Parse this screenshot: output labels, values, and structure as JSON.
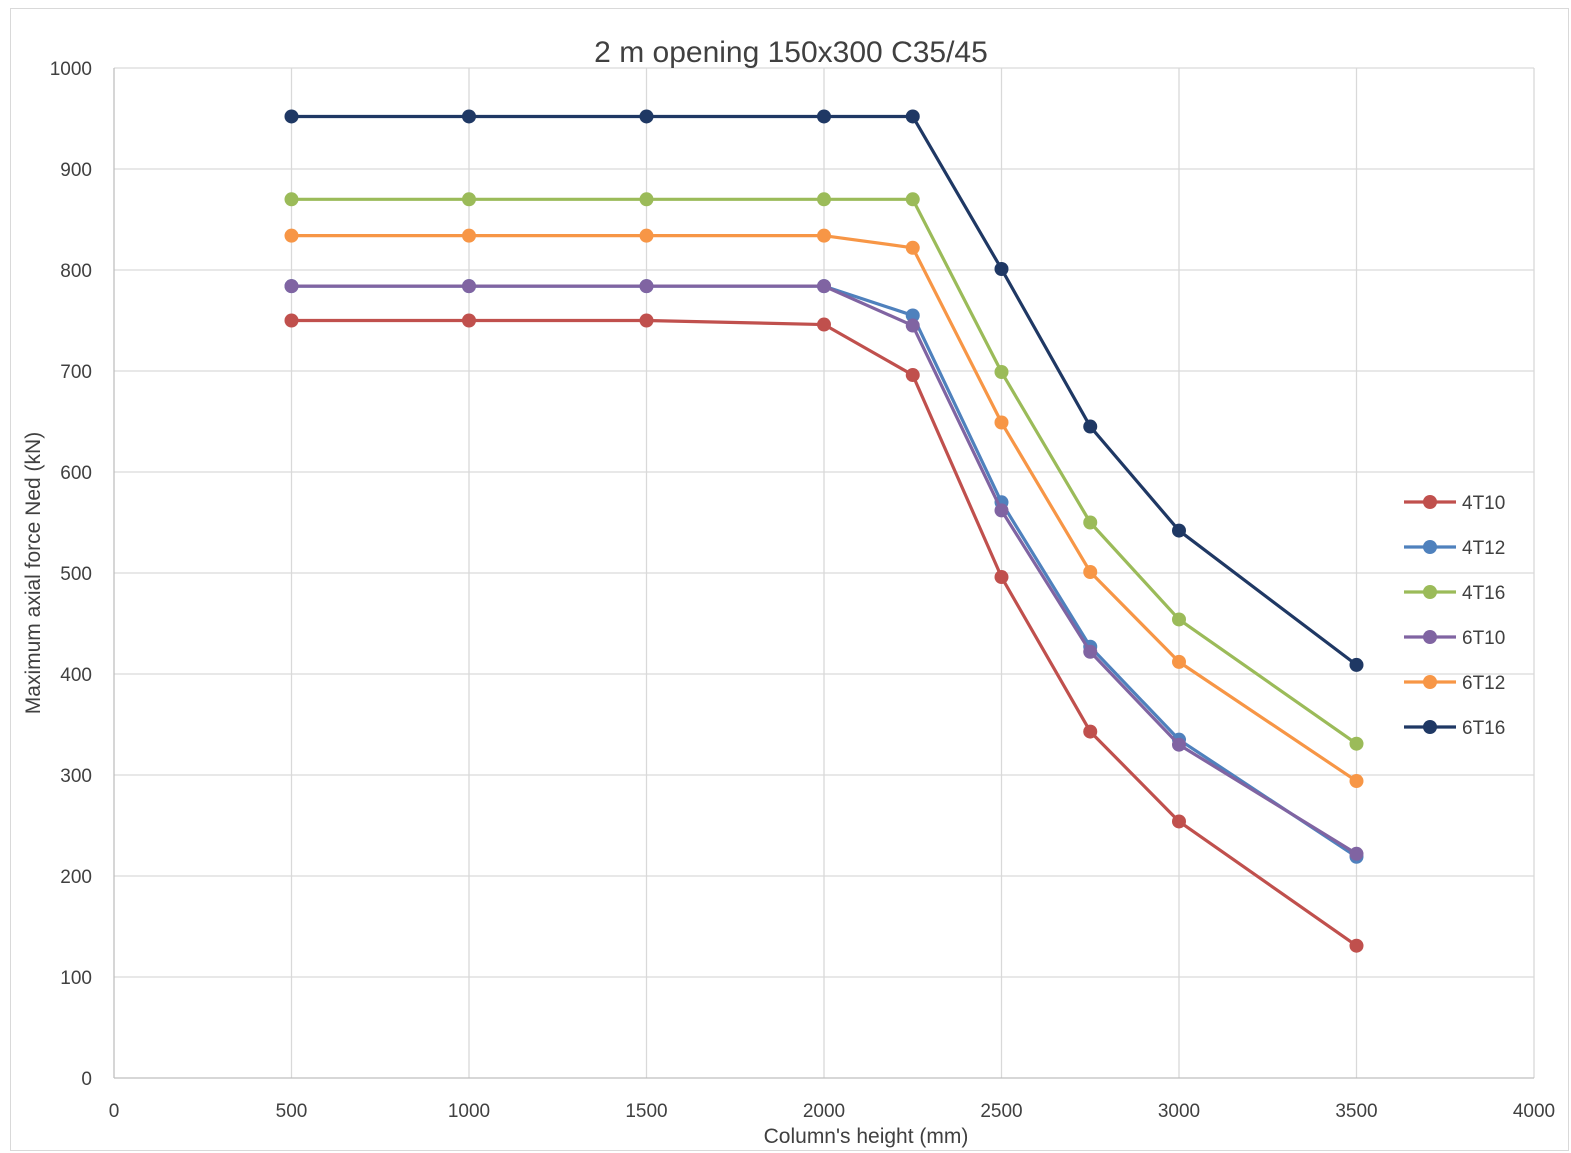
{
  "chart_data": {
    "type": "line",
    "title": "2 m opening 150x300 C35/45",
    "xlabel": "Column's height (mm)",
    "ylabel": "Maximum axial force Ned (kN)",
    "xlim": [
      0,
      4000
    ],
    "ylim": [
      0,
      1000
    ],
    "xticks": [
      0,
      500,
      1000,
      1500,
      2000,
      2500,
      3000,
      3500,
      4000
    ],
    "yticks": [
      0,
      100,
      200,
      300,
      400,
      500,
      600,
      700,
      800,
      900,
      1000
    ],
    "grid": true,
    "legend_position": "right",
    "x": [
      500,
      1000,
      1500,
      2000,
      2250,
      2500,
      2750,
      3000,
      3500
    ],
    "series": [
      {
        "name": "4T10",
        "color": "#c0504d",
        "values": [
          750,
          750,
          750,
          746,
          696,
          496,
          343,
          254,
          131
        ]
      },
      {
        "name": "4T12",
        "color": "#4f81bd",
        "values": [
          784,
          784,
          784,
          784,
          755,
          570,
          427,
          335,
          219
        ]
      },
      {
        "name": "4T16",
        "color": "#9bbb59",
        "values": [
          870,
          870,
          870,
          870,
          870,
          699,
          550,
          454,
          331
        ]
      },
      {
        "name": "6T10",
        "color": "#8064a2",
        "values": [
          784,
          784,
          784,
          784,
          745,
          562,
          422,
          330,
          222
        ]
      },
      {
        "name": "6T12",
        "color": "#f79646",
        "values": [
          834,
          834,
          834,
          834,
          822,
          649,
          501,
          412,
          294
        ]
      },
      {
        "name": "6T16",
        "color": "#1f3864",
        "values": [
          952,
          952,
          952,
          952,
          952,
          801,
          645,
          542,
          409
        ]
      }
    ]
  }
}
